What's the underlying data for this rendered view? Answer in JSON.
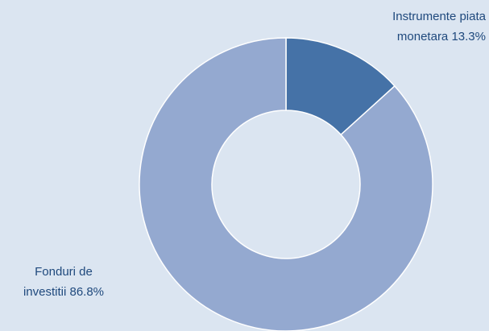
{
  "chart_data": {
    "type": "donut",
    "categories": [
      "Instrumente piata monetara",
      "Fonduri de investitii"
    ],
    "values": [
      13.3,
      86.8
    ],
    "value_labels": [
      "13.3%",
      "86.8%"
    ],
    "colors": [
      "#4572a7",
      "#94a9d0"
    ]
  }
}
